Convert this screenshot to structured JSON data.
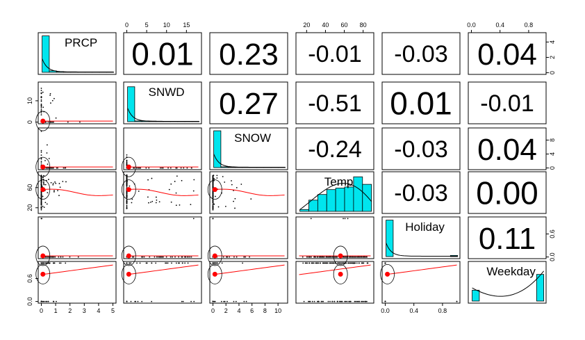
{
  "chart_data": {
    "type": "scatter-matrix",
    "title": "",
    "variables": [
      "PRCP",
      "SNWD",
      "SNOW",
      "Temp",
      "Holiday",
      "Weekday"
    ],
    "correlations": [
      {
        "row": 0,
        "col": 1,
        "label": "0.01"
      },
      {
        "row": 0,
        "col": 2,
        "label": "0.23"
      },
      {
        "row": 0,
        "col": 3,
        "label": "-0.01"
      },
      {
        "row": 0,
        "col": 4,
        "label": "-0.03"
      },
      {
        "row": 0,
        "col": 5,
        "label": "0.04"
      },
      {
        "row": 1,
        "col": 2,
        "label": "0.27"
      },
      {
        "row": 1,
        "col": 3,
        "label": "-0.51"
      },
      {
        "row": 1,
        "col": 4,
        "label": "0.01"
      },
      {
        "row": 1,
        "col": 5,
        "label": "-0.01"
      },
      {
        "row": 2,
        "col": 3,
        "label": "-0.24"
      },
      {
        "row": 2,
        "col": 4,
        "label": "-0.03"
      },
      {
        "row": 2,
        "col": 5,
        "label": "0.04"
      },
      {
        "row": 3,
        "col": 4,
        "label": "-0.03"
      },
      {
        "row": 3,
        "col": 5,
        "label": "0.00"
      },
      {
        "row": 4,
        "col": 5,
        "label": "0.11"
      }
    ],
    "ranges": [
      [
        0,
        5
      ],
      [
        0,
        18
      ],
      [
        0,
        11
      ],
      [
        12,
        88
      ],
      [
        0,
        1
      ],
      [
        0,
        1
      ]
    ],
    "top_axes": [
      {
        "col": 1,
        "ticks": [
          0,
          5,
          10,
          15
        ]
      },
      {
        "col": 3,
        "ticks": [
          20,
          40,
          60,
          80
        ]
      },
      {
        "col": 5,
        "ticks": [
          "0.0",
          "0.4",
          "0.8"
        ]
      }
    ],
    "bottom_axes": [
      {
        "col": 0,
        "ticks": [
          0,
          1,
          2,
          3,
          4,
          5
        ]
      },
      {
        "col": 2,
        "ticks": [
          0,
          2,
          4,
          6,
          8,
          10
        ]
      },
      {
        "col": 4,
        "ticks": [
          "0.0",
          "0.4",
          "0.8"
        ]
      }
    ],
    "left_axes": [
      {
        "row": 1,
        "ticks": [
          0,
          10
        ]
      },
      {
        "row": 3,
        "ticks": [
          20,
          60
        ]
      },
      {
        "row": 5,
        "ticks": [
          "0.0",
          "0.6"
        ]
      }
    ],
    "right_axes": [
      {
        "row": 0,
        "ticks": [
          0,
          2,
          4
        ]
      },
      {
        "row": 2,
        "ticks": [
          0,
          4,
          8
        ]
      },
      {
        "row": 4,
        "ticks": [
          "0.0",
          "0.6"
        ]
      }
    ],
    "histograms": [
      {
        "var": "PRCP",
        "density": [
          0.97,
          0.04,
          0.02,
          0.01,
          0.01,
          0.005,
          0.005,
          0.003,
          0.003,
          0.002
        ]
      },
      {
        "var": "SNWD",
        "density": [
          0.93,
          0.02,
          0.02,
          0.015,
          0.01,
          0.01,
          0.01,
          0.01,
          0.005,
          0.005
        ]
      },
      {
        "var": "SNOW",
        "density": [
          0.98,
          0.02,
          0.01,
          0.01,
          0.005,
          0.005,
          0.005,
          0.003,
          0.003,
          0.002
        ]
      },
      {
        "var": "Temp",
        "density": [
          0.05,
          0.3,
          0.45,
          0.58,
          0.62,
          0.65,
          0.92,
          0.72
        ]
      },
      {
        "var": "Holiday",
        "density": [
          0.97,
          0,
          0,
          0,
          0,
          0,
          0,
          0,
          0,
          0.03
        ]
      },
      {
        "var": "Weekday",
        "density": [
          0.29,
          0,
          0,
          0,
          0,
          0,
          0,
          0,
          0,
          0.71
        ]
      }
    ],
    "means": {
      "PRCP": 0.11,
      "SNWD": 0.5,
      "SNOW": 0.3,
      "Temp": 56.0,
      "Holiday": 0.03,
      "Weekday": 0.71
    },
    "colors": {
      "histogram": "#00E5EE",
      "points": "#000000",
      "loess": "#FF0000",
      "mean": "#FF0000",
      "ellipse": "#000000"
    }
  }
}
